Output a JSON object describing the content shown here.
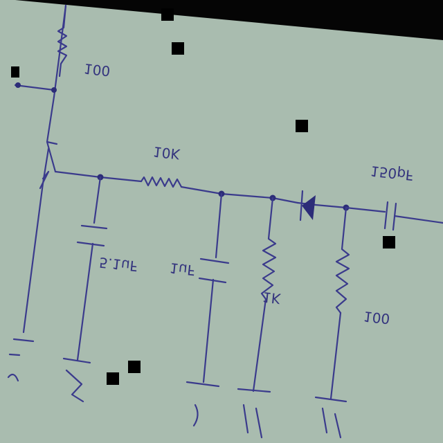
{
  "components": {
    "r_top": "100",
    "r_series": "10K",
    "cap_emitter": "5.1uF",
    "cap_mid": "1uF",
    "r_shunt": "1K",
    "r_out": "100",
    "cap_out": "150pF"
  },
  "colors": {
    "paper": "#a9bcaf",
    "ink": "#3a3a8c",
    "background": "#000000"
  }
}
